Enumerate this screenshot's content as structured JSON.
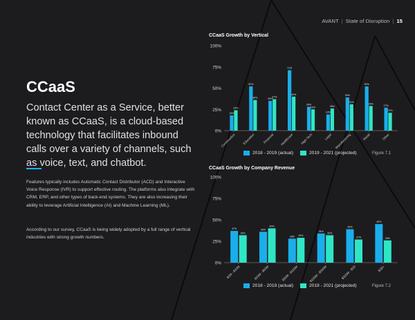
{
  "header": {
    "doc": "AVANT",
    "section": "State of Disruption",
    "page": "15"
  },
  "title": "CCaaS",
  "lead": "Contact Center as a Service, better known as CCaaS, is a cloud-based technology that facilitates inbound calls over a variety of channels, such as voice, text, and chatbot.",
  "body1": "Features typically includes Automatic Contact Distributor (ACD) and Interactive Voice Response (IVR) to support effective routing. The platforms also integrate with CRM, ERP, and other types of back-end systems. They are also increasing their ability to leverage Artificial Intelligence (AI) and Machine Learning (ML).",
  "body2": "According to our survey, CCaaS is being widely adopted by a full range of vertical industries with strong growth numbers.",
  "colors": {
    "series1": "#1aaeea",
    "series2": "#2ee6c6",
    "accent": "#1fb4f0",
    "background": "#1c1c1e"
  },
  "chart_data": [
    {
      "type": "bar",
      "title": "CCaaS Growth by Vertical",
      "figure_label": "Figure 7.1",
      "ylim": [
        0,
        100
      ],
      "y_ticks": [
        "0%",
        "25%",
        "50%",
        "75%",
        "100%"
      ],
      "categories": [
        "Construction",
        "Education",
        "Financial",
        "Healthcare",
        "High Tech",
        "Legal",
        "Manufacturing",
        "Retail",
        "Other"
      ],
      "series": [
        {
          "name": "2018 - 2019 (actual)",
          "values": [
            18,
            52,
            35,
            71,
            28,
            19,
            39,
            52,
            27
          ]
        },
        {
          "name": "2019 - 2021 (projected)",
          "values": [
            24,
            36,
            37,
            40,
            25,
            26,
            31,
            29,
            21
          ]
        }
      ]
    },
    {
      "type": "bar",
      "title": "CCaaS Growth by Company Revenue",
      "figure_label": "Figure 7.2",
      "ylim": [
        0,
        100
      ],
      "y_ticks": [
        "0%",
        "25%",
        "50%",
        "75%",
        "100%"
      ],
      "categories": [
        "$1M - $10M",
        "$10M - $50M",
        "$50M - $100M",
        "$100M - $500M",
        "$500M - $1B",
        "$1B+"
      ],
      "series": [
        {
          "name": "2018 - 2019 (actual)",
          "values": [
            37,
            36,
            28,
            34,
            39,
            45
          ]
        },
        {
          "name": "2019 - 2021 (projected)",
          "values": [
            32,
            40,
            29,
            32,
            27,
            26
          ]
        }
      ]
    }
  ]
}
